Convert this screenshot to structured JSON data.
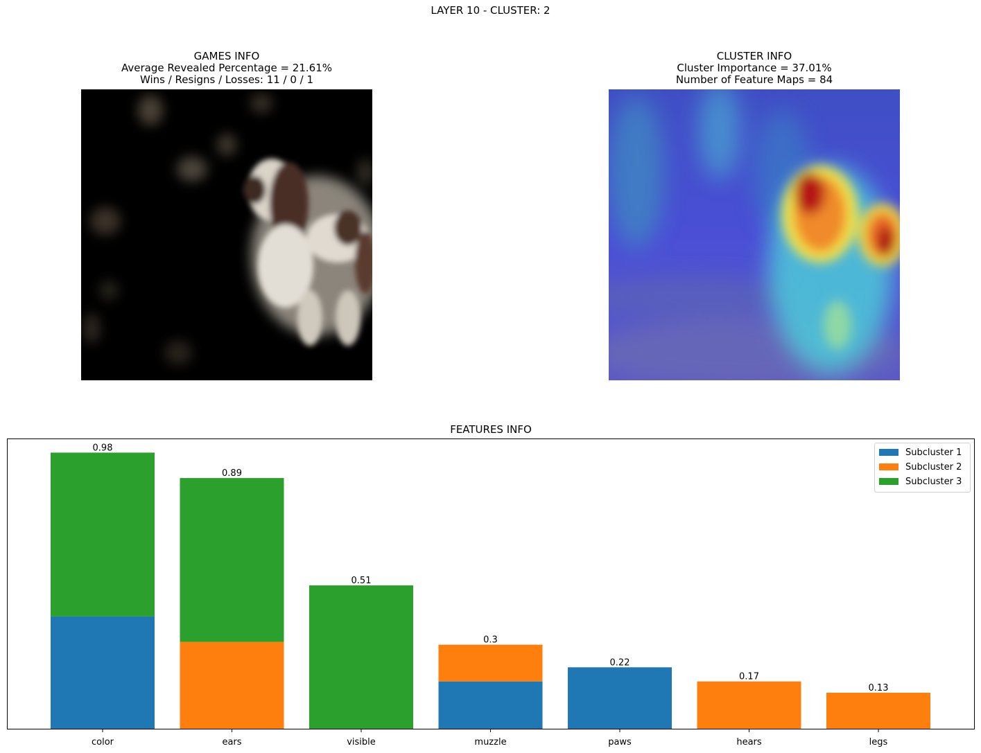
{
  "suptitle": "LAYER 10 - CLUSTER: 2",
  "games_info": {
    "title": "GAMES INFO",
    "line1": "Average Revealed Percentage = 21.61%",
    "line2": "Wins / Resigns / Losses: 11 / 0 / 1"
  },
  "cluster_info": {
    "title": "CLUSTER INFO",
    "line1": "Cluster Importance = 37.01%",
    "line2": "Number of Feature Maps = 84"
  },
  "colors": {
    "subcluster1": "#1f77b4",
    "subcluster2": "#ff7f0e",
    "subcluster3": "#2ca02c"
  },
  "chart_data": {
    "type": "bar",
    "stacked": true,
    "title": "FEATURES INFO",
    "xlabel": "",
    "ylabel": "",
    "ylim": [
      0,
      1.03
    ],
    "grid": false,
    "legend_position": "top-right",
    "categories": [
      "color",
      "ears",
      "visible",
      "muzzle",
      "paws",
      "hears",
      "legs"
    ],
    "totals": [
      "0.98",
      "0.89",
      "0.51",
      "0.3",
      "0.22",
      "0.17",
      "0.13"
    ],
    "series": [
      {
        "name": "Subcluster 1",
        "values": [
          0.4,
          0,
          0,
          0.17,
          0.22,
          0,
          0
        ]
      },
      {
        "name": "Subcluster 2",
        "values": [
          0,
          0.31,
          0,
          0.13,
          0,
          0.17,
          0.13
        ]
      },
      {
        "name": "Subcluster 3",
        "values": [
          0.58,
          0.58,
          0.51,
          0,
          0,
          0,
          0
        ]
      }
    ]
  }
}
